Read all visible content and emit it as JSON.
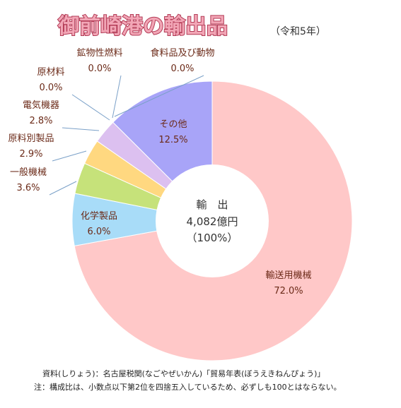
{
  "chart_data": {
    "type": "pie",
    "title": "御前崎港の輸出品",
    "subtitle": "（令和5年）",
    "center": {
      "line1": "輸　出",
      "line2": "4,082億円",
      "line3": "（100%）"
    },
    "slices": [
      {
        "label": "輸送用機械",
        "value": 72.0,
        "value_label": "72.0%",
        "color": "#ffc8c8"
      },
      {
        "label": "化学製品",
        "value": 6.0,
        "value_label": "6.0%",
        "color": "#a8dcf8"
      },
      {
        "label": "一般機械",
        "value": 3.6,
        "value_label": "3.6%",
        "color": "#c6e27a"
      },
      {
        "label": "原料別製品",
        "value": 2.9,
        "value_label": "2.9%",
        "color": "#ffd880"
      },
      {
        "label": "電気機器",
        "value": 2.8,
        "value_label": "2.8%",
        "color": "#dcc0f0"
      },
      {
        "label": "原材料",
        "value": 0.0,
        "value_label": "0.0%",
        "color": "#bbbbbb"
      },
      {
        "label": "鉱物性燃料",
        "value": 0.0,
        "value_label": "0.0%",
        "color": "#bbbbbb"
      },
      {
        "label": "食料品及び動物",
        "value": 0.0,
        "value_label": "0.0%",
        "color": "#bbbbbb"
      },
      {
        "label": "その他",
        "value": 12.5,
        "value_label": "12.5%",
        "color": "#a8a4f8"
      }
    ]
  },
  "notes": {
    "source": "資料(しりょう)：名古屋税関(なごやぜいかん)「貿易年表(ぼうえきねんぴょう)」",
    "remark": "注：構成比は、小数点以下第2位を四捨五入しているため、必ずしも100とはならない。"
  }
}
